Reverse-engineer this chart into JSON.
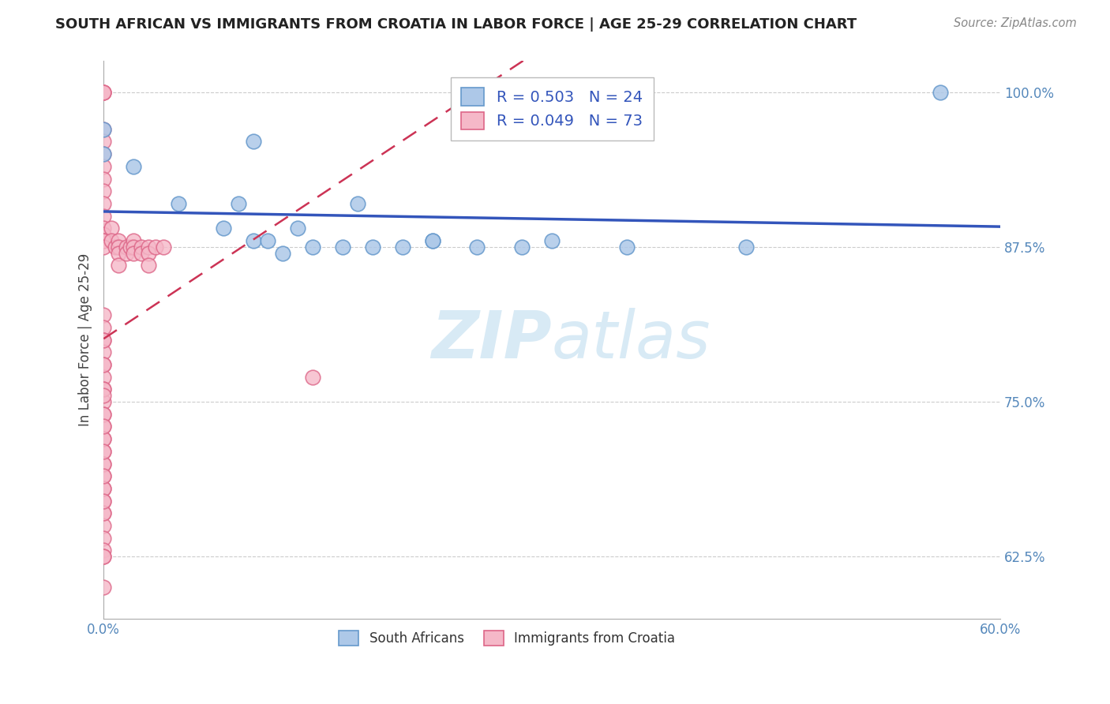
{
  "title": "SOUTH AFRICAN VS IMMIGRANTS FROM CROATIA IN LABOR FORCE | AGE 25-29 CORRELATION CHART",
  "source": "Source: ZipAtlas.com",
  "ylabel": "In Labor Force | Age 25-29",
  "xlim": [
    0.0,
    0.6
  ],
  "ylim": [
    0.575,
    1.025
  ],
  "xticks": [
    0.0,
    0.1,
    0.2,
    0.3,
    0.4,
    0.5,
    0.6
  ],
  "xticklabels": [
    "0.0%",
    "",
    "",
    "",
    "",
    "",
    "60.0%"
  ],
  "yticks": [
    0.625,
    0.75,
    0.875,
    1.0
  ],
  "yticklabels": [
    "62.5%",
    "75.0%",
    "87.5%",
    "100.0%"
  ],
  "blue_R": 0.503,
  "blue_N": 24,
  "pink_R": 0.049,
  "pink_N": 73,
  "blue_color": "#adc8e8",
  "blue_edge": "#6699cc",
  "pink_color": "#f5b8c8",
  "pink_edge": "#dd6688",
  "blue_line_color": "#3355bb",
  "pink_line_color": "#cc3355",
  "watermark_color": "#d8eaf5",
  "legend_text_color": "#3355bb",
  "tick_color": "#5588bb",
  "title_color": "#222222",
  "source_color": "#888888",
  "grid_color": "#cccccc",
  "blue_x": [
    0.0,
    0.0,
    0.02,
    0.05,
    0.08,
    0.09,
    0.1,
    0.1,
    0.11,
    0.12,
    0.13,
    0.14,
    0.16,
    0.17,
    0.18,
    0.2,
    0.22,
    0.22,
    0.25,
    0.28,
    0.3,
    0.35,
    0.43,
    0.56
  ],
  "blue_y": [
    0.97,
    0.95,
    0.94,
    0.91,
    0.89,
    0.91,
    0.96,
    0.88,
    0.88,
    0.87,
    0.89,
    0.875,
    0.875,
    0.91,
    0.875,
    0.875,
    0.88,
    0.88,
    0.875,
    0.875,
    0.88,
    0.875,
    0.875,
    1.0
  ],
  "pink_x": [
    0.0,
    0.0,
    0.0,
    0.0,
    0.0,
    0.0,
    0.0,
    0.0,
    0.0,
    0.0,
    0.0,
    0.0,
    0.0,
    0.0,
    0.0,
    0.0,
    0.005,
    0.005,
    0.008,
    0.01,
    0.01,
    0.01,
    0.01,
    0.015,
    0.015,
    0.018,
    0.02,
    0.02,
    0.02,
    0.025,
    0.025,
    0.03,
    0.03,
    0.03,
    0.035,
    0.04,
    0.0,
    0.0,
    0.0,
    0.0,
    0.0,
    0.0,
    0.0,
    0.0,
    0.0,
    0.0,
    0.0,
    0.0,
    0.0,
    0.0,
    0.0,
    0.0,
    0.0,
    0.0,
    0.0,
    0.0,
    0.0,
    0.0,
    0.0,
    0.0,
    0.0,
    0.14,
    0.0,
    0.0,
    0.0,
    0.0,
    0.0,
    0.0,
    0.0,
    0.0,
    0.0,
    0.0,
    0.0
  ],
  "pink_y": [
    1.0,
    1.0,
    1.0,
    0.97,
    0.96,
    0.95,
    0.94,
    0.93,
    0.92,
    0.91,
    0.9,
    0.89,
    0.885,
    0.88,
    0.88,
    0.875,
    0.89,
    0.88,
    0.875,
    0.88,
    0.875,
    0.87,
    0.86,
    0.875,
    0.87,
    0.875,
    0.88,
    0.875,
    0.87,
    0.875,
    0.87,
    0.875,
    0.87,
    0.86,
    0.875,
    0.875,
    0.82,
    0.81,
    0.8,
    0.79,
    0.78,
    0.77,
    0.76,
    0.75,
    0.74,
    0.73,
    0.72,
    0.71,
    0.7,
    0.69,
    0.68,
    0.67,
    0.66,
    0.65,
    0.64,
    0.63,
    0.625,
    0.8,
    0.78,
    0.76,
    0.74,
    0.77,
    0.72,
    0.7,
    0.68,
    0.66,
    0.625,
    0.6,
    0.755,
    0.73,
    0.71,
    0.69,
    0.67
  ]
}
